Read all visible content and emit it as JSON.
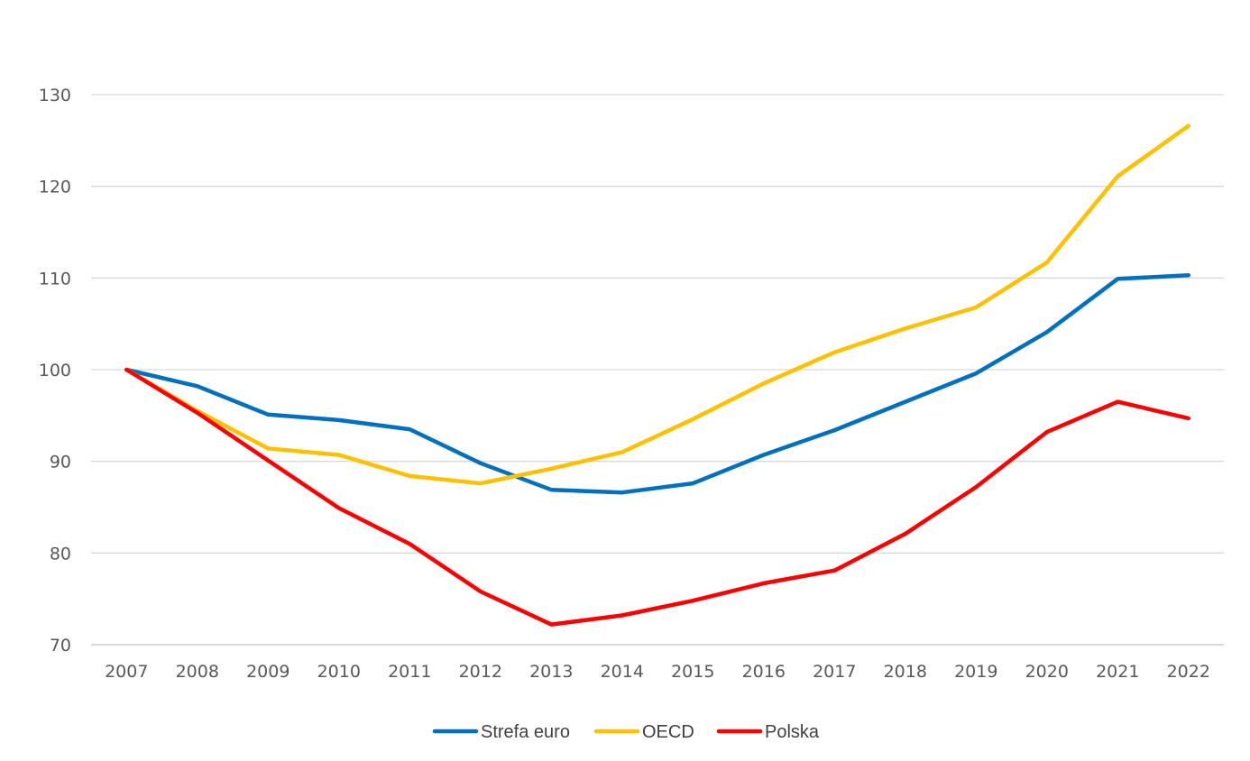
{
  "chart_data": {
    "type": "line",
    "title": "",
    "xlabel": "",
    "ylabel": "",
    "x": [
      2007,
      2008,
      2009,
      2010,
      2011,
      2012,
      2013,
      2014,
      2015,
      2016,
      2017,
      2018,
      2019,
      2020,
      2021,
      2022
    ],
    "ylim": [
      70,
      130
    ],
    "yticks": [
      70,
      80,
      90,
      100,
      110,
      120,
      130
    ],
    "grid": true,
    "legend_position": "bottom",
    "series": [
      {
        "name": "Strefa euro",
        "color": "#0070C0",
        "values": [
          100,
          98.2,
          95.1,
          94.5,
          93.5,
          89.8,
          86.9,
          86.6,
          87.6,
          90.7,
          93.4,
          96.5,
          99.6,
          104.1,
          109.9,
          110.3
        ]
      },
      {
        "name": "OECD",
        "color": "#FFC000",
        "values": [
          100,
          95.5,
          91.4,
          90.7,
          88.4,
          87.6,
          89.2,
          91.0,
          94.6,
          98.5,
          101.9,
          104.5,
          106.8,
          111.7,
          121.1,
          126.6
        ]
      },
      {
        "name": "Polska",
        "color": "#FF0000",
        "values": [
          100,
          95.3,
          90.1,
          84.9,
          81.0,
          75.8,
          72.2,
          73.2,
          74.8,
          76.7,
          78.1,
          82.1,
          87.2,
          93.2,
          96.5,
          94.7
        ]
      }
    ]
  }
}
